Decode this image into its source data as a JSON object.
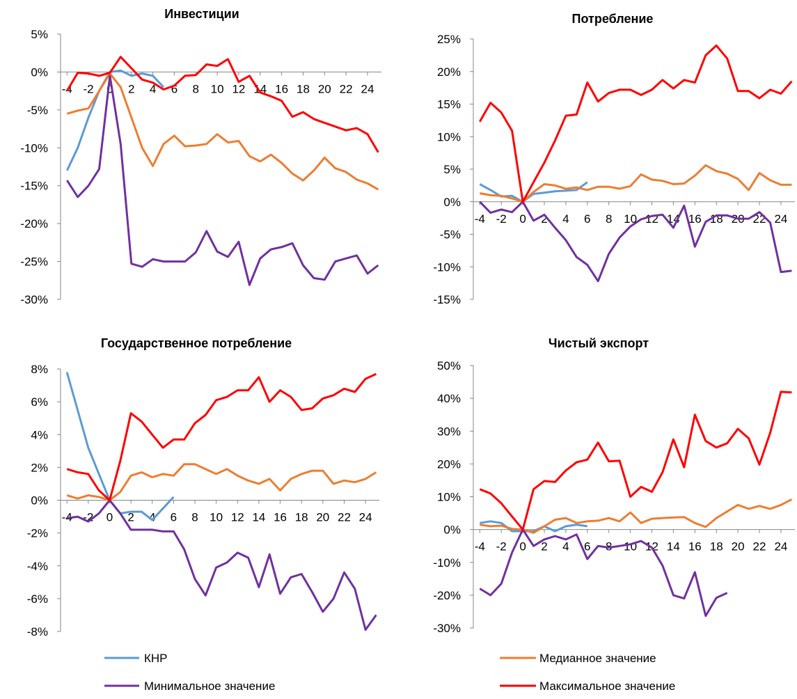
{
  "chart_data": [
    {
      "type": "line",
      "title": "Инвестиции",
      "x": [
        -4,
        -3,
        -2,
        -1,
        0,
        1,
        2,
        3,
        4,
        5,
        6,
        7,
        8,
        9,
        10,
        11,
        12,
        13,
        14,
        15,
        16,
        17,
        18,
        19,
        20,
        21,
        22,
        23,
        24,
        25
      ],
      "xlim": [
        -4.6,
        25.3
      ],
      "xticks": [
        -4,
        -2,
        0,
        2,
        4,
        6,
        8,
        10,
        12,
        14,
        16,
        18,
        20,
        22,
        24
      ],
      "ylim": [
        -30,
        5
      ],
      "yticks": [
        {
          "value": -30,
          "label": "-30%"
        },
        {
          "value": -25,
          "label": "-25%"
        },
        {
          "value": -20,
          "label": "-20%"
        },
        {
          "value": -15,
          "label": "-15%"
        },
        {
          "value": -10,
          "label": "-10%"
        },
        {
          "value": -5,
          "label": "-5%"
        },
        {
          "value": 0,
          "label": "0%"
        },
        {
          "value": 5,
          "label": "5%"
        }
      ],
      "grid": false,
      "series": [
        {
          "name": "КНР",
          "color": "#5b9bd5",
          "values": [
            -13,
            -10,
            -6,
            -2.5,
            0,
            0.2,
            -0.5,
            -0.2,
            -0.5,
            -2,
            null,
            null,
            null,
            null,
            null,
            null,
            null,
            null,
            null,
            null,
            null,
            null,
            null,
            null,
            null,
            null,
            null,
            null,
            null,
            null
          ]
        },
        {
          "name": "Медианное значение",
          "color": "#ed7d31",
          "values": [
            -5.5,
            -5.1,
            -4.8,
            -2.5,
            -0.2,
            -2,
            -6,
            -10,
            -12.4,
            -9.5,
            -8.4,
            -9.8,
            -9.7,
            -9.5,
            -8.2,
            -9.3,
            -9.1,
            -11.1,
            -11.8,
            -10.9,
            -12,
            -13.4,
            -14.3,
            -13,
            -11.3,
            -12.7,
            -13.2,
            -14.2,
            -14.7,
            -15.5
          ]
        },
        {
          "name": "Минимальное значение",
          "color": "#7030a0",
          "values": [
            -14.3,
            -16.5,
            -15,
            -12.8,
            -0.5,
            -9.5,
            -25.3,
            -25.7,
            -24.7,
            -25,
            -25,
            -25,
            -23.8,
            -21,
            -23.7,
            -24.4,
            -22.4,
            -28.1,
            -24.6,
            -23.4,
            -23.1,
            -22.6,
            -25.5,
            -27.2,
            -27.4,
            -25,
            -24.6,
            -24.2,
            -26.6,
            -25.5
          ]
        },
        {
          "name": "Максимальное значение",
          "color": "#ff0000",
          "values": [
            -2.5,
            -0.1,
            -0.2,
            -0.5,
            -0.1,
            2,
            0.5,
            -1,
            -1.4,
            -2.3,
            -1.8,
            -0.5,
            -0.4,
            1,
            0.8,
            1.7,
            -1.3,
            -0.5,
            -2.7,
            -3.2,
            -3.8,
            -5.9,
            -5.3,
            -6.2,
            -6.7,
            -7.2,
            -7.7,
            -7.4,
            -8.2,
            -10.6
          ]
        }
      ]
    },
    {
      "type": "line",
      "title": "Потребление",
      "x": [
        -4,
        -3,
        -2,
        -1,
        0,
        1,
        2,
        3,
        4,
        5,
        6,
        7,
        8,
        9,
        10,
        11,
        12,
        13,
        14,
        15,
        16,
        17,
        18,
        19,
        20,
        21,
        22,
        23,
        24,
        25
      ],
      "xlim": [
        -4.6,
        25.3
      ],
      "xticks": [
        -4,
        -2,
        0,
        2,
        4,
        6,
        8,
        10,
        12,
        14,
        16,
        18,
        20,
        22,
        24
      ],
      "ylim": [
        -15,
        25
      ],
      "yticks": [
        {
          "value": -15,
          "label": "-15%"
        },
        {
          "value": -10,
          "label": "-10%"
        },
        {
          "value": -5,
          "label": "-5%"
        },
        {
          "value": 0,
          "label": "0%"
        },
        {
          "value": 5,
          "label": "5%"
        },
        {
          "value": 10,
          "label": "10%"
        },
        {
          "value": 15,
          "label": "15%"
        },
        {
          "value": 20,
          "label": "20%"
        },
        {
          "value": 25,
          "label": "25%"
        }
      ],
      "grid": false,
      "series": [
        {
          "name": "КНР",
          "color": "#5b9bd5",
          "values": [
            2.7,
            1.8,
            0.8,
            0.9,
            0,
            1.2,
            1.4,
            1.6,
            1.7,
            1.8,
            3,
            null,
            null,
            null,
            null,
            null,
            null,
            null,
            null,
            null,
            null,
            null,
            null,
            null,
            null,
            null,
            null,
            null,
            null,
            null
          ]
        },
        {
          "name": "Медианное значение",
          "color": "#ed7d31",
          "values": [
            1.3,
            1,
            0.9,
            0.5,
            0,
            1.5,
            2.7,
            2.5,
            2,
            2.2,
            1.8,
            2.3,
            2.3,
            2,
            2.4,
            4.2,
            3.4,
            3.2,
            2.7,
            2.8,
            4,
            5.6,
            4.7,
            4.3,
            3.5,
            1.8,
            4.4,
            3.3,
            2.6,
            2.6
          ]
        },
        {
          "name": "Минимальное значение",
          "color": "#7030a0",
          "values": [
            0,
            -1.7,
            -1.2,
            -1.6,
            0,
            -2.9,
            -2,
            -4,
            -5.9,
            -8.5,
            -9.7,
            -12.2,
            -8,
            -5.5,
            -3.8,
            -2.7,
            -2.2,
            -2,
            -4,
            -0.6,
            -6.9,
            -3.1,
            -2.1,
            -2.1,
            -2.6,
            -2.6,
            -1.6,
            -3.2,
            -10.8,
            -10.6
          ]
        },
        {
          "name": "Максимальное значение",
          "color": "#ff0000",
          "values": [
            12.3,
            15.2,
            13.7,
            10.9,
            0,
            3,
            6,
            9.4,
            13.2,
            13.4,
            18.3,
            15.4,
            16.7,
            17.2,
            17.2,
            16.4,
            17.2,
            18.7,
            17.4,
            18.7,
            18.3,
            22.5,
            24,
            22,
            17,
            17,
            15.9,
            17.2,
            16.6,
            18.5
          ]
        }
      ]
    },
    {
      "type": "line",
      "title": "Государственное потребление",
      "x": [
        -4,
        -3,
        -2,
        -1,
        0,
        1,
        2,
        3,
        4,
        5,
        6,
        7,
        8,
        9,
        10,
        11,
        12,
        13,
        14,
        15,
        16,
        17,
        18,
        19,
        20,
        21,
        22,
        23,
        24,
        25
      ],
      "xlim": [
        -4.6,
        25.3
      ],
      "xticks": [
        -4,
        -2,
        0,
        2,
        4,
        6,
        8,
        10,
        12,
        14,
        16,
        18,
        20,
        22,
        24
      ],
      "ylim": [
        -8,
        8
      ],
      "yticks": [
        {
          "value": -8,
          "label": "-8%"
        },
        {
          "value": -6,
          "label": "-6%"
        },
        {
          "value": -4,
          "label": "-4%"
        },
        {
          "value": -2,
          "label": "-2%"
        },
        {
          "value": 0,
          "label": "0%"
        },
        {
          "value": 2,
          "label": "2%"
        },
        {
          "value": 4,
          "label": "4%"
        },
        {
          "value": 6,
          "label": "6%"
        },
        {
          "value": 8,
          "label": "8%"
        }
      ],
      "grid": false,
      "series": [
        {
          "name": "КНР",
          "color": "#5b9bd5",
          "values": [
            7.8,
            5.5,
            3.2,
            1.6,
            0,
            -0.8,
            -0.7,
            -0.7,
            -1.2,
            -0.5,
            0.2,
            null,
            null,
            null,
            null,
            null,
            null,
            null,
            null,
            null,
            null,
            null,
            null,
            null,
            null,
            null,
            null,
            null,
            null,
            null
          ]
        },
        {
          "name": "Медианное значение",
          "color": "#ed7d31",
          "values": [
            0.3,
            0.1,
            0.3,
            0.2,
            0,
            0.5,
            1.5,
            1.7,
            1.4,
            1.6,
            1.5,
            2.2,
            2.2,
            1.9,
            1.6,
            1.9,
            1.5,
            1.2,
            1,
            1.3,
            0.6,
            1.3,
            1.6,
            1.8,
            1.8,
            1,
            1.2,
            1.1,
            1.3,
            1.7
          ]
        },
        {
          "name": "Минимальное значение",
          "color": "#7030a0",
          "values": [
            -1.1,
            -1,
            -1.3,
            -0.8,
            0,
            -0.8,
            -1.8,
            -1.8,
            -1.8,
            -1.9,
            -1.9,
            -3,
            -4.8,
            -5.8,
            -4.1,
            -3.8,
            -3.2,
            -3.5,
            -5.3,
            -3.3,
            -5.7,
            -4.7,
            -4.5,
            -5.6,
            -6.8,
            -6,
            -4.4,
            -5.4,
            -7.9,
            -7
          ]
        },
        {
          "name": "Максимальное значение",
          "color": "#ff0000",
          "values": [
            1.9,
            1.7,
            1.6,
            0.6,
            0,
            2.4,
            5.3,
            4.8,
            4,
            3.2,
            3.7,
            3.7,
            4.7,
            5.2,
            6.1,
            6.3,
            6.7,
            6.7,
            7.5,
            6,
            6.7,
            6.3,
            5.5,
            5.6,
            6.2,
            6.4,
            6.8,
            6.6,
            7.4,
            7.7
          ]
        }
      ]
    },
    {
      "type": "line",
      "title": "Чистый экспорт",
      "x": [
        -4,
        -3,
        -2,
        -1,
        0,
        1,
        2,
        3,
        4,
        5,
        6,
        7,
        8,
        9,
        10,
        11,
        12,
        13,
        14,
        15,
        16,
        17,
        18,
        19,
        20,
        21,
        22,
        23,
        24,
        25
      ],
      "xlim": [
        -4.6,
        25.3
      ],
      "xticks": [
        -4,
        -2,
        0,
        2,
        4,
        6,
        8,
        10,
        12,
        14,
        16,
        18,
        20,
        22,
        24
      ],
      "ylim": [
        -30,
        50
      ],
      "yticks": [
        {
          "value": -30,
          "label": "-30%"
        },
        {
          "value": -20,
          "label": "-20%"
        },
        {
          "value": -10,
          "label": "-10%"
        },
        {
          "value": 0,
          "label": "0%"
        },
        {
          "value": 10,
          "label": "10%"
        },
        {
          "value": 20,
          "label": "20%"
        },
        {
          "value": 30,
          "label": "30%"
        },
        {
          "value": 40,
          "label": "40%"
        },
        {
          "value": 50,
          "label": "50%"
        }
      ],
      "grid": false,
      "series": [
        {
          "name": "КНР",
          "color": "#5b9bd5",
          "values": [
            2,
            2.5,
            2,
            -0.5,
            -0.5,
            -0.5,
            1,
            -0.5,
            1,
            1.5,
            1,
            null,
            null,
            null,
            null,
            null,
            null,
            null,
            null,
            null,
            null,
            null,
            null,
            null,
            null,
            null,
            null,
            null,
            null,
            null
          ]
        },
        {
          "name": "Медианное значение",
          "color": "#ed7d31",
          "values": [
            1.5,
            1,
            1.2,
            0.2,
            0,
            -1,
            1,
            3,
            3.5,
            2,
            2.5,
            2.7,
            3.5,
            2.5,
            5.2,
            2,
            3.3,
            3.5,
            3.7,
            3.8,
            2,
            0.8,
            3.5,
            5.5,
            7.5,
            6.3,
            7.2,
            6.3,
            7.5,
            9.2
          ]
        },
        {
          "name": "Минимальное значение",
          "color": "#7030a0",
          "values": [
            -18,
            -20,
            -16.5,
            -7,
            0,
            -5,
            -3,
            -2,
            -3,
            -1.5,
            -9,
            -5,
            -5.5,
            -5,
            -4.5,
            -3.5,
            -5.5,
            -11,
            -20,
            -21,
            -13,
            -26.3,
            -20.8,
            -19.3,
            null,
            null,
            null,
            null,
            null,
            null
          ]
        },
        {
          "name": "Максимальное значение",
          "color": "#ff0000",
          "values": [
            12.3,
            11,
            8,
            4,
            0,
            12.3,
            14.8,
            14.5,
            18,
            20.5,
            21.3,
            26.5,
            20.8,
            21,
            10,
            13,
            11.5,
            17.5,
            27.5,
            19,
            35,
            27,
            25,
            26.3,
            30.7,
            27.8,
            19.8,
            29.5,
            42,
            41.8
          ]
        }
      ]
    }
  ]
}
